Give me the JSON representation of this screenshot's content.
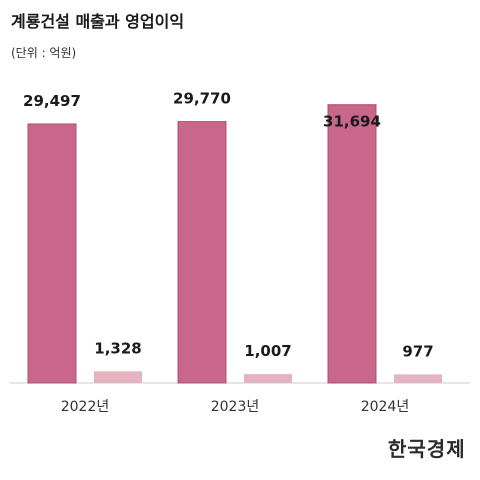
{
  "title": "계룡건설 매출과 영업이익",
  "unit_label": "(단위 : 억원)",
  "brand": "한국경제",
  "colors": {
    "revenue": "#c9678a",
    "revenue_stroke": "#b04f73",
    "profit": "#e3b3c2",
    "axis": "#cccccc"
  },
  "chart_data": {
    "type": "bar",
    "categories": [
      "2022년",
      "2023년",
      "2024년"
    ],
    "series": [
      {
        "values": [
          29497,
          29770,
          31694
        ],
        "labels": [
          "29,497",
          "29,770",
          "31,694"
        ]
      },
      {
        "values": [
          1328,
          1007,
          977
        ],
        "labels": [
          "1,328",
          "1,007",
          "977"
        ]
      }
    ],
    "ylim": [
      0,
      32000
    ],
    "grid": false
  }
}
